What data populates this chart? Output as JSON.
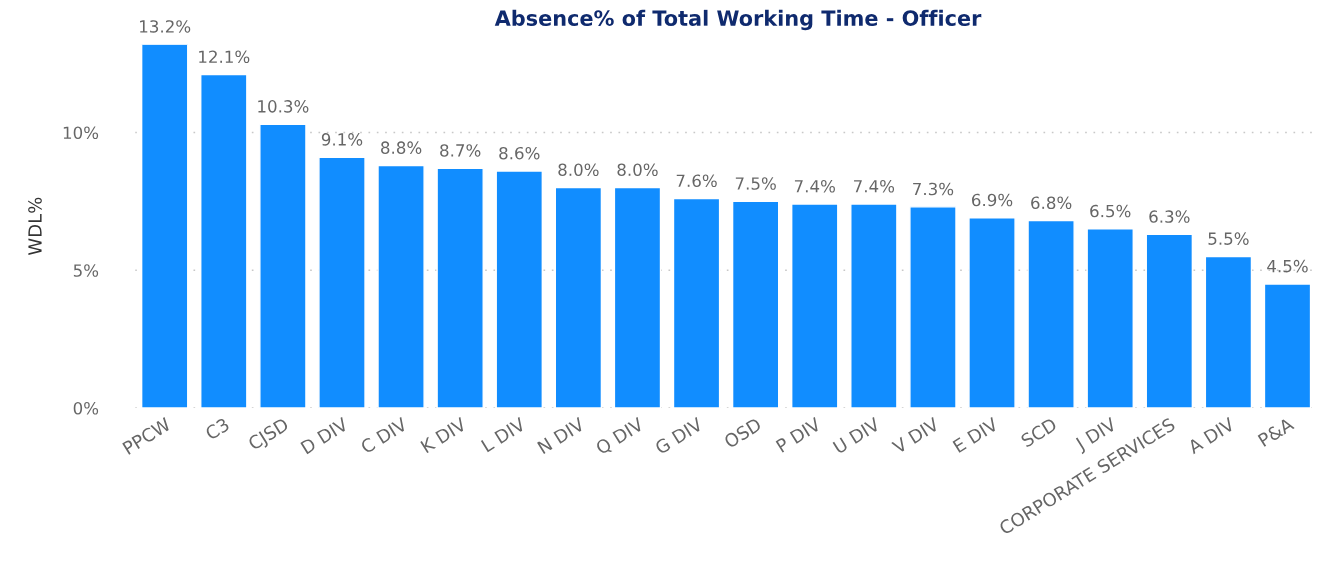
{
  "chart_data": {
    "type": "bar",
    "title": "Absence% of Total Working Time - Officer",
    "ylabel": "WDL%",
    "categories": [
      "PPCW",
      "C3",
      "CJSD",
      "D DIV",
      "C DIV",
      "K DIV",
      "L DIV",
      "N DIV",
      "Q DIV",
      "G DIV",
      "OSD",
      "P DIV",
      "U DIV",
      "V DIV",
      "E DIV",
      "SCD",
      "J DIV",
      "CORPORATE SERVICES",
      "A DIV",
      "P&A"
    ],
    "values": [
      13.2,
      12.1,
      10.3,
      9.1,
      8.8,
      8.7,
      8.6,
      8.0,
      8.0,
      7.6,
      7.5,
      7.4,
      7.4,
      7.3,
      6.9,
      6.8,
      6.5,
      6.3,
      5.5,
      4.5
    ],
    "value_labels": [
      "13.2%",
      "12.1%",
      "10.3%",
      "9.1%",
      "8.8%",
      "8.7%",
      "8.6%",
      "8.0%",
      "8.0%",
      "7.6%",
      "7.5%",
      "7.4%",
      "7.4%",
      "7.3%",
      "6.9%",
      "6.8%",
      "6.5%",
      "6.3%",
      "5.5%",
      "4.5%"
    ],
    "color": "#118dff",
    "ylim": [
      0,
      13.2
    ],
    "yticks": [
      {
        "value": 0,
        "label": "0%"
      },
      {
        "value": 5,
        "label": "5%"
      },
      {
        "value": 10,
        "label": "10%"
      }
    ],
    "grid": "y"
  }
}
